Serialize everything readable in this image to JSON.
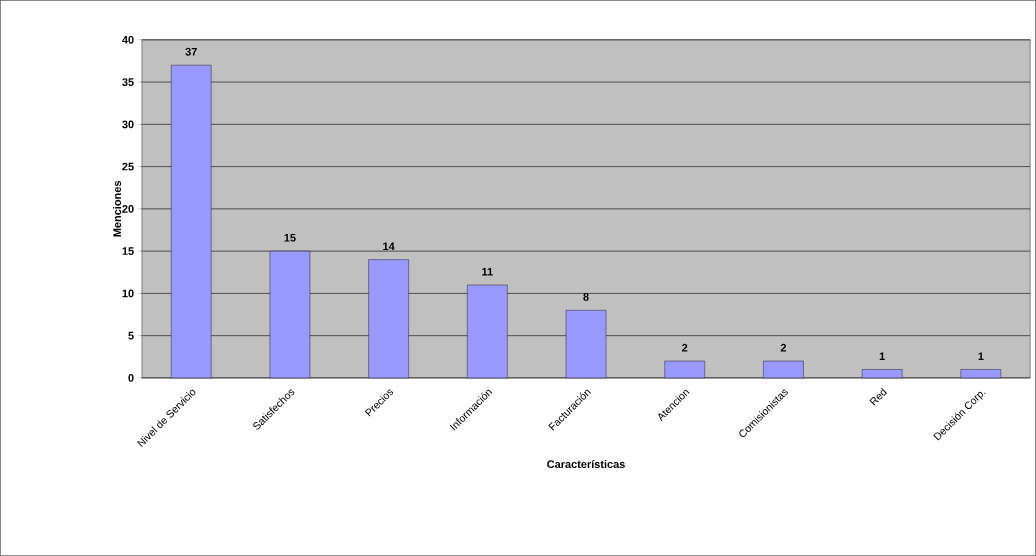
{
  "chart_data": {
    "type": "bar",
    "xlabel": "Características",
    "ylabel": "Menciones",
    "categories": [
      "Nivel de Servicio",
      "Satisfechos",
      "Precios",
      "Información",
      "Facturación",
      "Atencion",
      "Comisionistas",
      "Red",
      "Decisión Corp."
    ],
    "values": [
      37,
      15,
      14,
      11,
      8,
      2,
      2,
      1,
      1
    ],
    "color": "#9999ff",
    "ylim": [
      0,
      40
    ],
    "yticks": [
      0,
      5,
      10,
      15,
      20,
      25,
      30,
      35,
      40
    ],
    "grid": "y",
    "data_labels": true
  }
}
